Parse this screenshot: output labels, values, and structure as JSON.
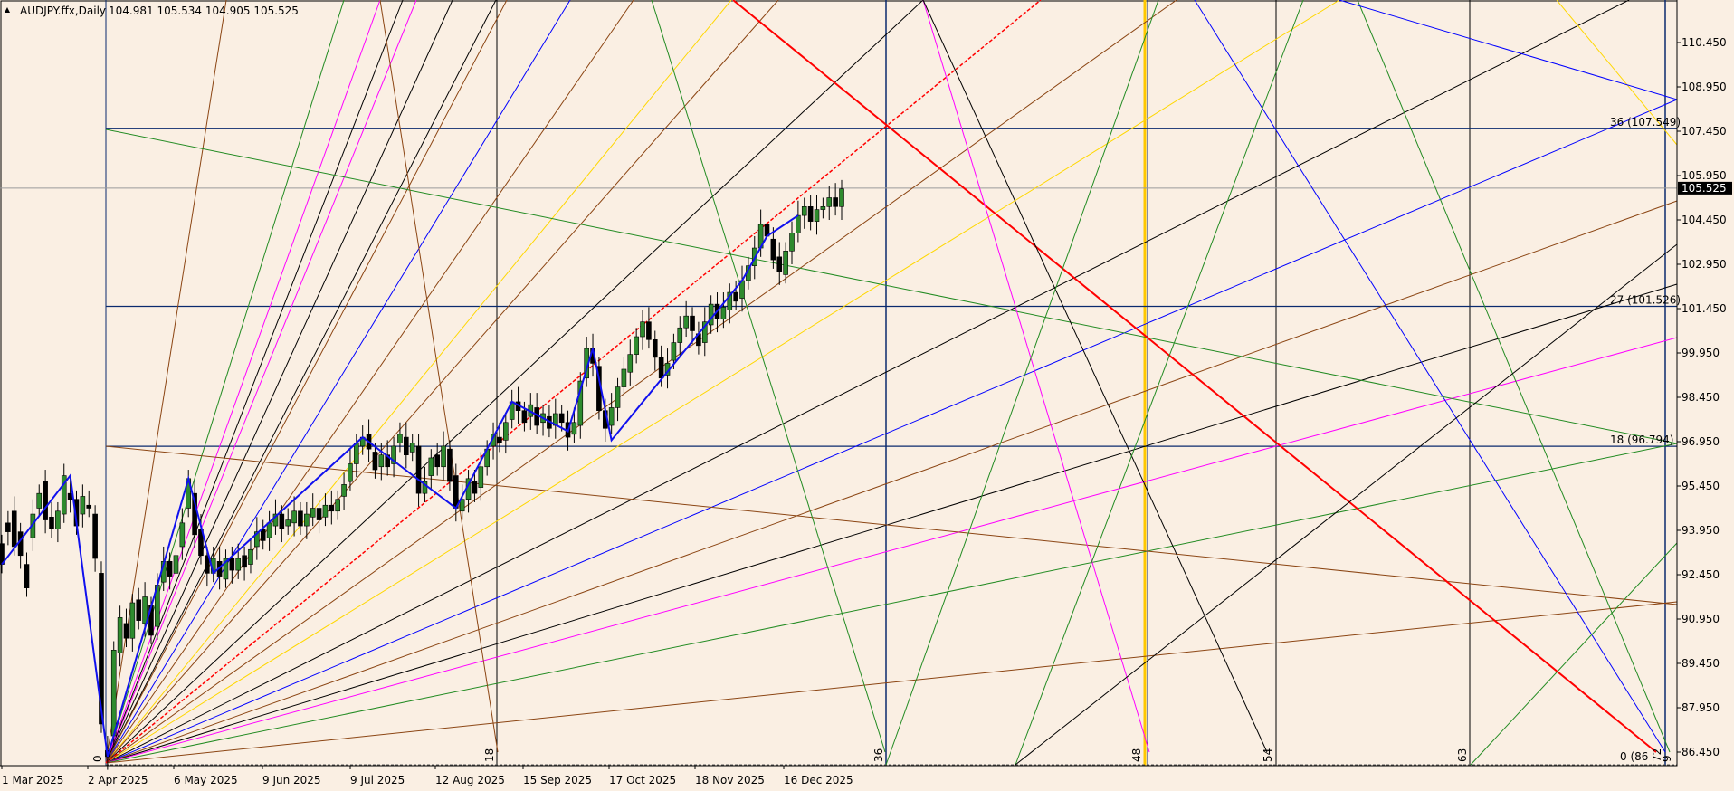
{
  "header": {
    "symbol": "AUDJPY.ffx,Daily",
    "ohlc": "104.981 105.534 104.905 105.525"
  },
  "chart_data": {
    "type": "candlestick",
    "symbol": "AUDJPY.ffx",
    "timeframe": "Daily",
    "last": {
      "open": 104.981,
      "high": 105.534,
      "low": 104.905,
      "close": 105.525
    },
    "ylim": [
      85.7,
      112.0
    ],
    "y_ticks": [
      "110.450",
      "108.950",
      "107.450",
      "105.950",
      "104.450",
      "102.950",
      "101.450",
      "99.950",
      "98.450",
      "96.950",
      "95.450",
      "93.950",
      "92.450",
      "90.950",
      "89.450",
      "87.950",
      "86.450"
    ],
    "x_ticks": [
      "1 Mar 2025",
      "2 Apr 2025",
      "6 May 2025",
      "9 Jun 2025",
      "9 Jul 2025",
      "12 Aug 2025",
      "15 Sep 2025",
      "17 Oct 2025",
      "18 Nov 2025",
      "16 Dec 2025"
    ],
    "price_label": "105.525",
    "price_line": 105.525,
    "price_line_color": "#000000",
    "gann_square": {
      "time_levels": [
        "0",
        "18",
        "36",
        "48",
        "54",
        "63",
        "72",
        "9"
      ],
      "price_levels": [
        {
          "label": "36 (107.549)",
          "value": 107.549
        },
        {
          "label": "27 (101.526)",
          "value": 101.526
        },
        {
          "label": "18 (96.794)",
          "value": 96.794
        },
        {
          "label": "0 (86",
          "value": 86.25
        }
      ]
    },
    "candles_approx": [
      [
        93.5,
        92.8
      ],
      [
        94.2,
        93.9
      ],
      [
        94.6,
        93.4
      ],
      [
        93.9,
        93.1
      ],
      [
        92.8,
        92.0
      ],
      [
        93.7,
        94.5
      ],
      [
        94.7,
        95.2
      ],
      [
        95.6,
        94.3
      ],
      [
        94.4,
        94.0
      ],
      [
        94.0,
        94.6
      ],
      [
        94.5,
        95.8
      ],
      [
        95.2,
        95.0
      ],
      [
        95.0,
        94.1
      ],
      [
        94.5,
        95.1
      ],
      [
        94.8,
        94.7
      ],
      [
        94.5,
        93.0
      ],
      [
        92.5,
        87.4
      ],
      [
        86.5,
        86.3
      ],
      [
        87.0,
        89.9
      ],
      [
        89.8,
        91.0
      ],
      [
        90.8,
        90.3
      ],
      [
        90.3,
        91.5
      ],
      [
        91.6,
        90.9
      ],
      [
        90.8,
        91.7
      ],
      [
        91.4,
        90.4
      ],
      [
        90.7,
        92.1
      ],
      [
        92.2,
        92.9
      ],
      [
        92.9,
        92.4
      ],
      [
        92.5,
        93.1
      ],
      [
        93.4,
        94.2
      ],
      [
        94.7,
        95.7
      ],
      [
        95.2,
        93.8
      ],
      [
        94.0,
        93.1
      ],
      [
        93.1,
        92.5
      ],
      [
        92.5,
        93.0
      ],
      [
        92.9,
        92.4
      ],
      [
        92.3,
        93.0
      ],
      [
        93.0,
        92.6
      ],
      [
        92.6,
        93.0
      ],
      [
        93.1,
        92.7
      ],
      [
        92.8,
        93.3
      ],
      [
        93.4,
        93.9
      ],
      [
        94.0,
        93.6
      ],
      [
        93.7,
        94.2
      ],
      [
        94.1,
        94.5
      ],
      [
        94.5,
        94.0
      ],
      [
        94.1,
        94.3
      ],
      [
        94.2,
        94.6
      ],
      [
        94.6,
        94.1
      ],
      [
        94.1,
        94.5
      ],
      [
        94.4,
        94.7
      ],
      [
        94.7,
        94.3
      ],
      [
        94.4,
        94.8
      ],
      [
        94.8,
        94.6
      ],
      [
        94.6,
        95.0
      ],
      [
        95.1,
        95.5
      ],
      [
        95.6,
        96.2
      ],
      [
        96.2,
        96.9
      ],
      [
        96.8,
        97.1
      ],
      [
        97.2,
        96.7
      ],
      [
        96.6,
        96.0
      ],
      [
        96.1,
        96.5
      ],
      [
        96.5,
        96.1
      ],
      [
        96.2,
        96.8
      ],
      [
        96.9,
        97.2
      ],
      [
        97.1,
        96.5
      ],
      [
        96.6,
        96.9
      ],
      [
        96.8,
        95.2
      ],
      [
        95.2,
        95.6
      ],
      [
        95.8,
        96.4
      ],
      [
        96.5,
        96.1
      ],
      [
        96.1,
        96.8
      ],
      [
        96.7,
        95.6
      ],
      [
        95.8,
        94.7
      ],
      [
        94.6,
        95.0
      ],
      [
        95.0,
        95.7
      ],
      [
        95.6,
        95.2
      ],
      [
        95.4,
        96.1
      ],
      [
        96.1,
        96.7
      ],
      [
        96.8,
        97.2
      ],
      [
        97.1,
        96.9
      ],
      [
        97.0,
        97.6
      ],
      [
        97.7,
        98.3
      ],
      [
        98.3,
        98.0
      ],
      [
        98.0,
        97.6
      ],
      [
        97.8,
        98.2
      ],
      [
        98.1,
        97.5
      ],
      [
        97.6,
        97.9
      ],
      [
        97.8,
        97.4
      ],
      [
        97.5,
        97.9
      ],
      [
        97.9,
        97.6
      ],
      [
        97.6,
        97.1
      ],
      [
        97.2,
        97.6
      ],
      [
        97.5,
        99.0
      ],
      [
        99.1,
        100.1
      ],
      [
        100.1,
        99.6
      ],
      [
        99.5,
        98.0
      ],
      [
        98.0,
        97.4
      ],
      [
        97.5,
        98.1
      ],
      [
        98.1,
        98.8
      ],
      [
        98.8,
        99.4
      ],
      [
        99.3,
        99.9
      ],
      [
        99.9,
        100.5
      ],
      [
        100.5,
        101.0
      ],
      [
        101.0,
        100.4
      ],
      [
        100.4,
        99.8
      ],
      [
        99.8,
        99.1
      ],
      [
        99.2,
        99.6
      ],
      [
        99.7,
        100.3
      ],
      [
        100.3,
        100.8
      ],
      [
        100.8,
        101.2
      ],
      [
        101.2,
        100.7
      ],
      [
        100.6,
        100.2
      ],
      [
        100.3,
        101.0
      ],
      [
        100.9,
        101.6
      ],
      [
        101.6,
        101.1
      ],
      [
        101.1,
        101.5
      ],
      [
        101.4,
        102.0
      ],
      [
        102.0,
        101.7
      ],
      [
        101.8,
        102.4
      ],
      [
        102.4,
        102.9
      ],
      [
        102.9,
        103.5
      ],
      [
        103.5,
        104.3
      ],
      [
        104.3,
        103.9
      ],
      [
        103.8,
        103.1
      ],
      [
        103.2,
        102.7
      ],
      [
        102.6,
        103.4
      ],
      [
        103.4,
        104.0
      ],
      [
        104.0,
        104.6
      ],
      [
        104.6,
        104.9
      ],
      [
        104.9,
        104.4
      ],
      [
        104.4,
        104.8
      ],
      [
        104.8,
        104.9
      ],
      [
        104.9,
        105.2
      ],
      [
        105.2,
        104.9
      ],
      [
        104.9,
        105.5
      ]
    ],
    "zigzag": [
      [
        92.8,
        0
      ],
      [
        95.8,
        11
      ],
      [
        86.3,
        17
      ],
      [
        95.7,
        30
      ],
      [
        92.5,
        34
      ],
      [
        97.1,
        58
      ],
      [
        94.7,
        73
      ],
      [
        98.3,
        82
      ],
      [
        97.3,
        91
      ],
      [
        100.1,
        95
      ],
      [
        97.0,
        98
      ],
      [
        102.4,
        119
      ],
      [
        103.9,
        123
      ],
      [
        104.6,
        128
      ]
    ],
    "gann_fan_colors": [
      "#8b4513",
      "#228b22",
      "#000000",
      "#ff00ff",
      "#0000ff",
      "#ffd700",
      "#8b4513",
      "#000000",
      "#228b22",
      "#ff0000"
    ]
  }
}
